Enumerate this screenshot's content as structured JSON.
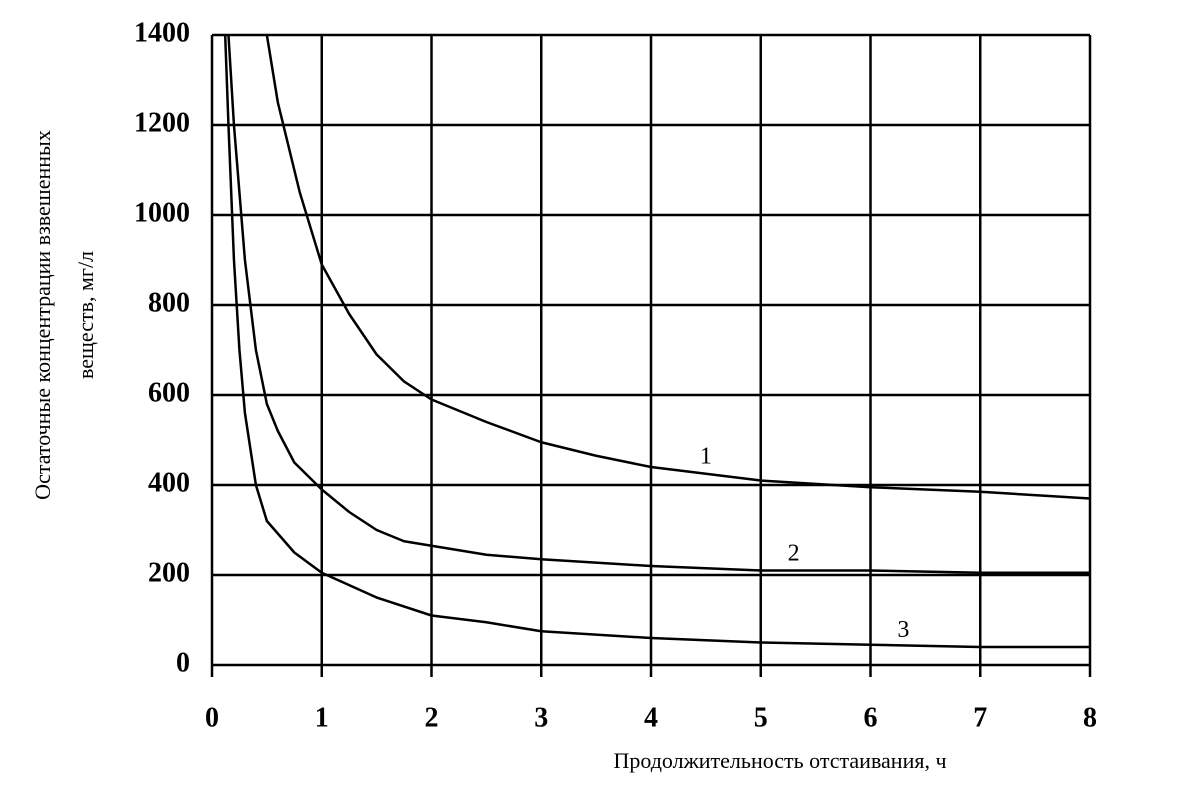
{
  "chart_data": {
    "type": "line",
    "y_label_lines": [
      "Остаточные концентрации взвешенных",
      "веществ, мг/л"
    ],
    "x_label": "Продолжительность отстаивания, ч",
    "xlim": [
      0,
      8
    ],
    "xticks": [
      0,
      1,
      2,
      3,
      4,
      5,
      6,
      7,
      8
    ],
    "ylim": [
      0,
      1400
    ],
    "yticks": [
      0,
      200,
      400,
      600,
      800,
      1000,
      1200,
      1400
    ],
    "grid": true,
    "series": [
      {
        "color": "#000000",
        "x": [
          0.5,
          0.6,
          0.8,
          1,
          1.25,
          1.5,
          1.75,
          2,
          2.5,
          3,
          3.5,
          4,
          4.5,
          5,
          6,
          7,
          8
        ],
        "values": [
          1400,
          1250,
          1050,
          890,
          780,
          690,
          630,
          590,
          540,
          495,
          465,
          440,
          425,
          410,
          395,
          385,
          370
        ]
      },
      {
        "color": "#000000",
        "x": [
          0.15,
          0.2,
          0.3,
          0.4,
          0.5,
          0.6,
          0.75,
          1,
          1.25,
          1.5,
          1.75,
          2,
          2.5,
          3,
          4,
          5,
          6,
          7,
          8
        ],
        "values": [
          1400,
          1200,
          900,
          700,
          580,
          520,
          450,
          390,
          340,
          300,
          275,
          265,
          245,
          235,
          220,
          210,
          210,
          205,
          205
        ]
      },
      {
        "color": "#000000",
        "x": [
          0.12,
          0.15,
          0.2,
          0.25,
          0.3,
          0.4,
          0.5,
          0.75,
          1,
          1.5,
          2,
          2.5,
          3,
          4,
          5,
          6,
          7,
          8
        ],
        "values": [
          1400,
          1200,
          900,
          700,
          560,
          400,
          320,
          250,
          205,
          150,
          110,
          95,
          75,
          60,
          50,
          45,
          40,
          40
        ]
      }
    ],
    "annotations": [
      {
        "text": "1",
        "x": 4.5,
        "y": 460
      },
      {
        "text": "2",
        "x": 5.3,
        "y": 245
      },
      {
        "text": "3",
        "x": 6.3,
        "y": 75
      }
    ]
  }
}
